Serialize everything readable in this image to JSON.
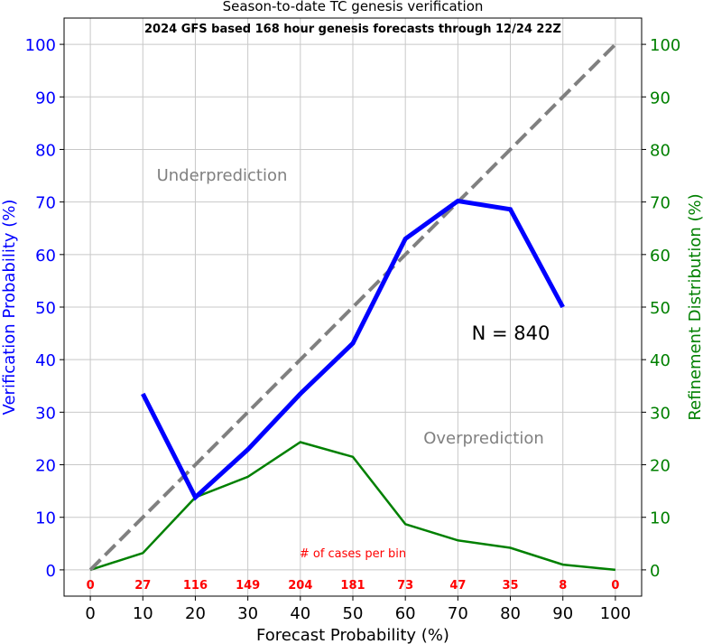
{
  "chart_data": {
    "type": "line",
    "title": "Season-to-date TC genesis verification",
    "subtitle": "2024 GFS based 168 hour genesis forecasts through 12/24 22Z",
    "xlabel": "Forecast Probability (%)",
    "ylabel_left": "Verification Probability (%)",
    "ylabel_right": "Refinement Distribution (%)",
    "xlim": [
      -5,
      105
    ],
    "ylim": [
      -5,
      105
    ],
    "x_ticks": [
      "0",
      "10",
      "20",
      "30",
      "40",
      "50",
      "60",
      "70",
      "80",
      "90",
      "100"
    ],
    "y_ticks": [
      "0",
      "10",
      "20",
      "30",
      "40",
      "50",
      "60",
      "70",
      "80",
      "90",
      "100"
    ],
    "grid": true,
    "colors": {
      "verification": "#0000ff",
      "refinement": "#008000",
      "perfect": "#808080",
      "cases": "#ff0000"
    },
    "series": [
      {
        "x": [
          10,
          20,
          30,
          40,
          50,
          60,
          70,
          80,
          90
        ],
        "values": [
          33.5,
          13.8,
          22.9,
          33.5,
          43.1,
          63.0,
          70.2,
          68.6,
          50.0
        ]
      },
      {
        "x": [
          0,
          10,
          20,
          30,
          40,
          50,
          60,
          70,
          80,
          90,
          100
        ],
        "values": [
          0.0,
          3.2,
          13.8,
          17.7,
          24.3,
          21.5,
          8.7,
          5.6,
          4.2,
          1.0,
          0.0
        ]
      },
      {
        "x": [
          0,
          100
        ],
        "values": [
          0,
          100
        ]
      }
    ],
    "annotations": {
      "underprediction": "Underprediction",
      "overprediction": "Overprediction",
      "n_label": "N = 840",
      "cases_title": "# of cases per bin"
    },
    "case_counts": [
      "0",
      "27",
      "116",
      "149",
      "204",
      "181",
      "73",
      "47",
      "35",
      "8",
      "0"
    ]
  }
}
